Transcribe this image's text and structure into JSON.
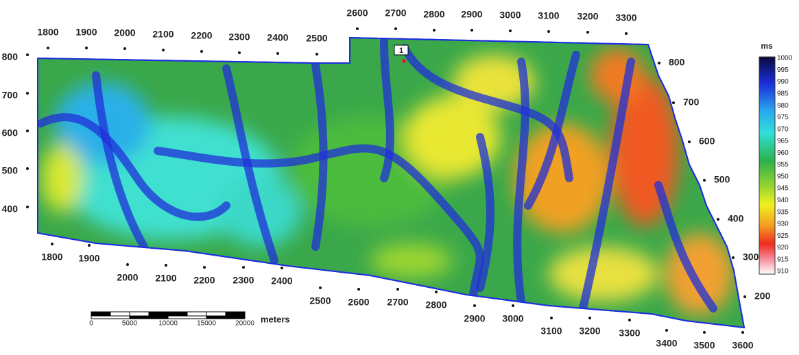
{
  "grid_labels": {
    "top_left": [
      1800,
      1900,
      2000,
      2100,
      2200,
      2300,
      2400,
      2500
    ],
    "top_right": [
      2600,
      2700,
      2800,
      2900,
      3000,
      3100,
      3200,
      3300
    ],
    "left": [
      800,
      700,
      600,
      500,
      400
    ],
    "right": [
      800,
      700,
      600,
      500,
      400,
      300,
      200
    ],
    "bottom": [
      1800,
      1900,
      2000,
      2100,
      2200,
      2300,
      2400,
      2500,
      2600,
      2700,
      2800,
      2900,
      3000,
      3100,
      3200,
      3300,
      3400,
      3500,
      3600
    ]
  },
  "well": {
    "label": "1"
  },
  "color_scale": {
    "unit": "ms",
    "ticks": [
      1000,
      995,
      990,
      985,
      980,
      975,
      970,
      965,
      960,
      955,
      950,
      945,
      940,
      935,
      930,
      925,
      920,
      915,
      910
    ]
  },
  "scale_bar": {
    "ticks": [
      0,
      5000,
      10000,
      15000,
      20000
    ],
    "unit": "meters"
  }
}
